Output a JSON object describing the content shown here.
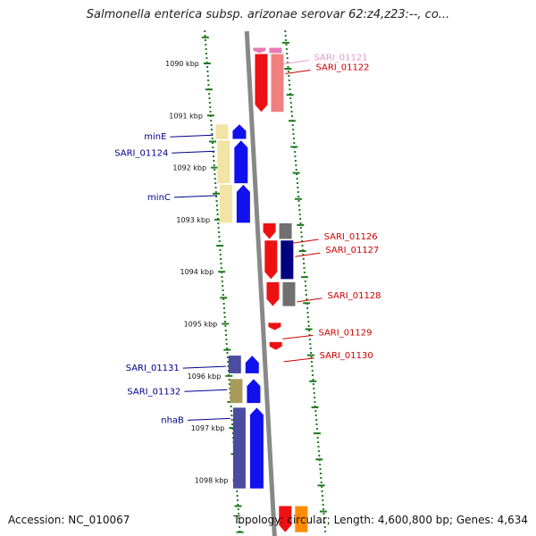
{
  "title": "Salmonella enterica subsp. arizonae serovar 62:z4,z23:--, co...",
  "footer": {
    "accession": "Accession: NC_010067",
    "summary": "Topology: circular; Length: 4,600,800 bp; Genes: 4,634"
  },
  "colors": {
    "backbone": "#888888",
    "tick": "#1f7a1f",
    "forward_label": "#00008b",
    "reverse_label": "#cc0000",
    "faint_label": "#e59ac8"
  },
  "scale": {
    "unit": "kbp",
    "ticks": [
      {
        "value": 1090,
        "label": "1090 kbp"
      },
      {
        "value": 1091,
        "label": "1091 kbp"
      },
      {
        "value": 1092,
        "label": "1092 kbp"
      },
      {
        "value": 1093,
        "label": "1093 kbp"
      },
      {
        "value": 1094,
        "label": "1094 kbp"
      },
      {
        "value": 1095,
        "label": "1095 kbp"
      },
      {
        "value": 1096,
        "label": "1096 kbp"
      },
      {
        "value": 1097,
        "label": "1097 kbp"
      },
      {
        "value": 1098,
        "label": "1098 kbp"
      }
    ]
  },
  "genes": [
    {
      "name": "SARI_01121",
      "strand": "reverse",
      "start": 1089.7,
      "end": 1089.8,
      "color": "#e87ab4",
      "partner": "#e87ab4",
      "label_color": "#e59ac8"
    },
    {
      "name": "SARI_01122",
      "strand": "reverse",
      "start": 1089.82,
      "end": 1090.93,
      "color": "#ee1111",
      "partner": "#f08080",
      "label_color": "#cc0000"
    },
    {
      "name": "minE",
      "strand": "forward",
      "start": 1091.17,
      "end": 1091.45,
      "color": "#1111ee",
      "partner": "#f2e4a4",
      "label_color": "#00008b"
    },
    {
      "name": "SARI_01124",
      "strand": "forward",
      "start": 1091.48,
      "end": 1092.3,
      "color": "#1111ee",
      "partner": "#f2e4a4",
      "label_color": "#00008b"
    },
    {
      "name": "minC",
      "strand": "forward",
      "start": 1092.33,
      "end": 1093.06,
      "color": "#1111ee",
      "partner": "#f2e4a4",
      "label_color": "#00008b"
    },
    {
      "name": "SARI_01126",
      "strand": "reverse",
      "start": 1093.07,
      "end": 1093.37,
      "color": "#ee1111",
      "partner": "#707070",
      "label_color": "#cc0000"
    },
    {
      "name": "SARI_01127",
      "strand": "reverse",
      "start": 1093.4,
      "end": 1094.14,
      "color": "#ee1111",
      "partner": "#000080",
      "label_color": "#cc0000"
    },
    {
      "name": "SARI_01128",
      "strand": "reverse",
      "start": 1094.2,
      "end": 1094.66,
      "color": "#ee1111",
      "partner": "#707070",
      "label_color": "#cc0000"
    },
    {
      "name": "SARI_01129",
      "strand": "reverse",
      "start": 1094.98,
      "end": 1095.12,
      "color": "#ee1111",
      "partner": null,
      "label_color": "#cc0000"
    },
    {
      "name": "SARI_01130",
      "strand": "reverse",
      "start": 1095.35,
      "end": 1095.5,
      "color": "#ee1111",
      "partner": null,
      "label_color": "#cc0000"
    },
    {
      "name": "SARI_01131",
      "strand": "forward",
      "start": 1095.61,
      "end": 1095.95,
      "color": "#1111ee",
      "partner": "#4b4ba0",
      "label_color": "#00008b"
    },
    {
      "name": "SARI_01132",
      "strand": "forward",
      "start": 1096.06,
      "end": 1096.52,
      "color": "#1111ee",
      "partner": "#a89a5a",
      "label_color": "#00008b"
    },
    {
      "name": "nhaB",
      "strand": "forward",
      "start": 1096.61,
      "end": 1098.16,
      "color": "#1111ee",
      "partner": "#4b4ba0",
      "label_color": "#00008b"
    }
  ],
  "extra_features": [
    {
      "strand": "reverse",
      "start": 1098.5,
      "end": 1099.0,
      "color": "#ee1111",
      "partner": "#ff8c00"
    }
  ]
}
